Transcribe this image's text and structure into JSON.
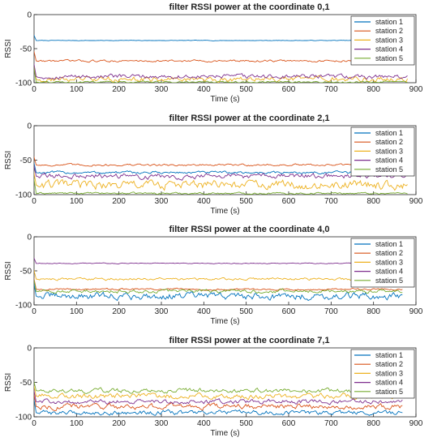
{
  "chart_data": [
    {
      "type": "line",
      "title": "filter RSSI power at the coordinate 0,1",
      "xlabel": "Time (s)",
      "ylabel": "RSSI",
      "xlim": [
        0,
        900
      ],
      "ylim": [
        -100,
        0
      ],
      "xticks": [
        "0",
        "100",
        "200",
        "300",
        "400",
        "500",
        "600",
        "700",
        "800",
        "900"
      ],
      "yticks": [
        "0",
        "-50",
        "-100"
      ],
      "legend": "top-right",
      "series": [
        {
          "name": "station 1",
          "color": "#0072BD",
          "level": -38,
          "noise": 0.3,
          "start": -20,
          "end": 880
        },
        {
          "name": "station 2",
          "color": "#D95319",
          "level": -68,
          "noise": 1.2,
          "start": -20,
          "end": 880
        },
        {
          "name": "station 3",
          "color": "#EDB120",
          "level": -95,
          "noise": 3,
          "start": -20,
          "end": 880
        },
        {
          "name": "station 4",
          "color": "#7E2F8E",
          "level": -91,
          "noise": 2.5,
          "start": -20,
          "end": 880
        },
        {
          "name": "station 5",
          "color": "#77AC30",
          "level": -99,
          "noise": 1,
          "start": -20,
          "end": 880
        }
      ]
    },
    {
      "type": "line",
      "title": "filter RSSI power at the coordinate 2,1",
      "xlabel": "Time (s)",
      "ylabel": "RSSI",
      "xlim": [
        0,
        900
      ],
      "ylim": [
        -100,
        0
      ],
      "xticks": [
        "0",
        "100",
        "200",
        "300",
        "400",
        "500",
        "600",
        "700",
        "800",
        "900"
      ],
      "yticks": [
        "0",
        "-50",
        "-100"
      ],
      "legend": "top-right",
      "series": [
        {
          "name": "station 1",
          "color": "#0072BD",
          "level": -68,
          "noise": 1.5,
          "start": -20,
          "end": 880
        },
        {
          "name": "station 2",
          "color": "#D95319",
          "level": -57,
          "noise": 1.2,
          "start": -20,
          "end": 880
        },
        {
          "name": "station 3",
          "color": "#EDB120",
          "level": -86,
          "noise": 5,
          "start": -20,
          "end": 880
        },
        {
          "name": "station 4",
          "color": "#7E2F8E",
          "level": -73,
          "noise": 3,
          "start": -20,
          "end": 880
        },
        {
          "name": "station 5",
          "color": "#77AC30",
          "level": -98,
          "noise": 1,
          "start": -20,
          "end": 880
        }
      ]
    },
    {
      "type": "line",
      "title": "filter RSSI power at the coordinate 4,0",
      "xlabel": "Time (s)",
      "ylabel": "RSSI",
      "xlim": [
        0,
        900
      ],
      "ylim": [
        -100,
        0
      ],
      "xticks": [
        "0",
        "100",
        "200",
        "300",
        "400",
        "500",
        "600",
        "700",
        "800",
        "900"
      ],
      "yticks": [
        "0",
        "-50",
        "-100"
      ],
      "legend": "top-right",
      "series": [
        {
          "name": "station 1",
          "color": "#0072BD",
          "level": -87,
          "noise": 4,
          "start": -20,
          "end": 870
        },
        {
          "name": "station 2",
          "color": "#D95319",
          "level": -77,
          "noise": 1,
          "start": -20,
          "end": 870
        },
        {
          "name": "station 3",
          "color": "#EDB120",
          "level": -62,
          "noise": 1.5,
          "start": -20,
          "end": 870
        },
        {
          "name": "station 4",
          "color": "#7E2F8E",
          "level": -39,
          "noise": 0.5,
          "start": -20,
          "end": 870
        },
        {
          "name": "station 5",
          "color": "#77AC30",
          "level": -80,
          "noise": 2,
          "start": -20,
          "end": 870
        }
      ]
    },
    {
      "type": "line",
      "title": "filter RSSI power at the coordinate 7,1",
      "xlabel": "Time (s)",
      "ylabel": "RSSI",
      "xlim": [
        0,
        900
      ],
      "ylim": [
        -100,
        0
      ],
      "xticks": [
        "0",
        "100",
        "200",
        "300",
        "400",
        "500",
        "600",
        "700",
        "800",
        "900"
      ],
      "yticks": [
        "0",
        "-50",
        "-100"
      ],
      "legend": "top-right",
      "series": [
        {
          "name": "station 1",
          "color": "#0072BD",
          "level": -94,
          "noise": 2.5,
          "start": -20,
          "end": 870
        },
        {
          "name": "station 2",
          "color": "#D95319",
          "level": -85,
          "noise": 3,
          "start": -20,
          "end": 870
        },
        {
          "name": "station 3",
          "color": "#EDB120",
          "level": -70,
          "noise": 3,
          "start": -20,
          "end": 870
        },
        {
          "name": "station 4",
          "color": "#7E2F8E",
          "level": -78,
          "noise": 2.5,
          "start": -20,
          "end": 870
        },
        {
          "name": "station 5",
          "color": "#77AC30",
          "level": -62,
          "noise": 2.5,
          "start": -20,
          "end": 870
        }
      ]
    }
  ]
}
